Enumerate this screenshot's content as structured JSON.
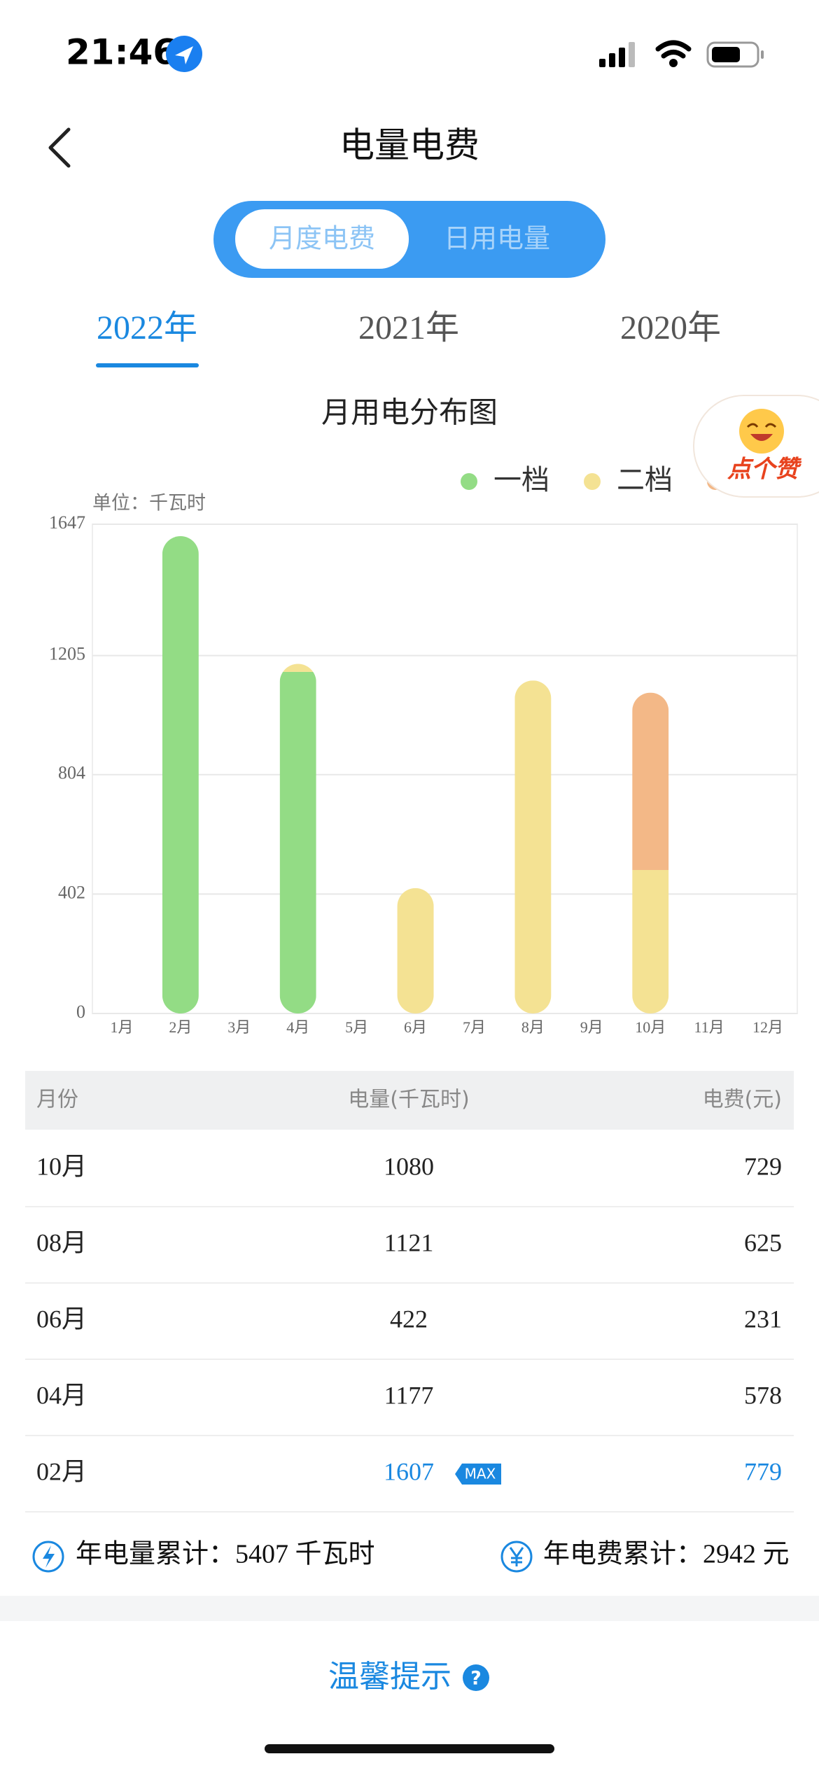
{
  "status": {
    "time": "21:46"
  },
  "header": {
    "title": "电量电费"
  },
  "tabs": [
    "月度电费",
    "日用电量"
  ],
  "years": [
    "2022年",
    "2021年",
    "2020年"
  ],
  "chart_data": {
    "type": "bar",
    "stacked": true,
    "title": "月用电分布图",
    "y_label": "单位：千瓦时",
    "categories": [
      "1月",
      "2月",
      "3月",
      "4月",
      "5月",
      "6月",
      "7月",
      "8月",
      "9月",
      "10月",
      "11月",
      "12月"
    ],
    "series": [
      {
        "name": "一档",
        "color": "#93dc85",
        "values": [
          null,
          1607,
          null,
          1150,
          null,
          null,
          null,
          null,
          null,
          null,
          null,
          null
        ]
      },
      {
        "name": "二档",
        "color": "#f4e293",
        "values": [
          null,
          null,
          null,
          27,
          null,
          422,
          null,
          1121,
          null,
          483,
          null,
          null
        ]
      },
      {
        "color": "#f3b887",
        "values": [
          null,
          null,
          null,
          null,
          null,
          null,
          null,
          null,
          null,
          597,
          null,
          null
        ]
      }
    ],
    "ylim": [
      0,
      1647
    ],
    "yticks": [
      0,
      402,
      804,
      1205,
      1647
    ],
    "grid": true
  },
  "table": {
    "columns": [
      "月份",
      "电量(千瓦时)",
      "电费(元)"
    ],
    "rows": [
      [
        "10月",
        1080,
        729
      ],
      [
        "08月",
        1121,
        625
      ],
      [
        "06月",
        422,
        231
      ],
      [
        "04月",
        1177,
        578
      ],
      [
        "02月",
        1607,
        779
      ]
    ],
    "max_label": "MAX"
  },
  "totals": [
    "年电量累计：5407 千瓦时",
    "年电费累计：2942 元"
  ],
  "tip": "温馨提示",
  "like": "点个赞"
}
